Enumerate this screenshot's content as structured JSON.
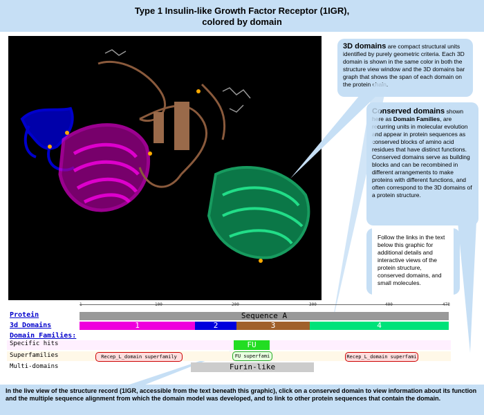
{
  "title": {
    "line1": "Type 1 Insulin-like Growth Factor Receptor (1IGR),",
    "line2": "colored by domain"
  },
  "callouts": {
    "domains3d": {
      "heading": "3D domains",
      "text": " are compact structural units identified by purely geometric criteria. Each 3D domain is shown in the same color in both the structure view window and the 3D domains bar graph that shows the span of each domain on the protein chain."
    },
    "conserved": {
      "heading": "Conserved domains",
      "text1": " shown here as ",
      "bold": "Domain Families",
      "text2": ", are recurring units in molecular evolution and appear in protein sequences as conserved blocks of amino acid residues that have distinct functions.  Conserved domains serve as building blocks and can be recombined in different arrangements to make proteins with different functions, and often correspond to the 3D domains of a protein structure."
    },
    "follow": "Follow the links in the text below this graphic for additional details and interactive views of the protein structure, conserved domains, and small molecules."
  },
  "ruler": {
    "ticks": [
      "1",
      "100",
      "200",
      "300",
      "400",
      "478"
    ]
  },
  "rows": {
    "protein_label": "Protein",
    "sequence_label": "Sequence A",
    "domains3d_label": "3d Domains",
    "domain_families_label": "Domain Families:",
    "specific_hits_label": "Specific hits",
    "superfamilies_label": "Superfamilies",
    "multidomains_label": "Multi-domains"
  },
  "domains3d": [
    {
      "label": "1",
      "color": "#ee00dd"
    },
    {
      "label": "2",
      "color": "#0000dd"
    },
    {
      "label": "3",
      "color": "#a0602a"
    },
    {
      "label": "4",
      "color": "#00e27a"
    }
  ],
  "specific_hit": "FU",
  "superfamilies": [
    "Recep_L_domain superfamily",
    "FU superfami",
    "Recep_L_domain superfami"
  ],
  "multidomain": "Furin-like",
  "bottom_text": "In the live view of the structure record (1IGR, accessible from the text beneath this graphic), click on a conserved domain to view information about its function and the multiple sequence alignment from which the domain model was developed, and to link to other protein sequences that contain the domain.",
  "colors": {
    "callout_bg": "#c6dff5",
    "viewer_bg": "#000000",
    "domain1": "#ee00dd",
    "domain2": "#0000dd",
    "domain3": "#a0602a",
    "domain4": "#00e27a"
  }
}
